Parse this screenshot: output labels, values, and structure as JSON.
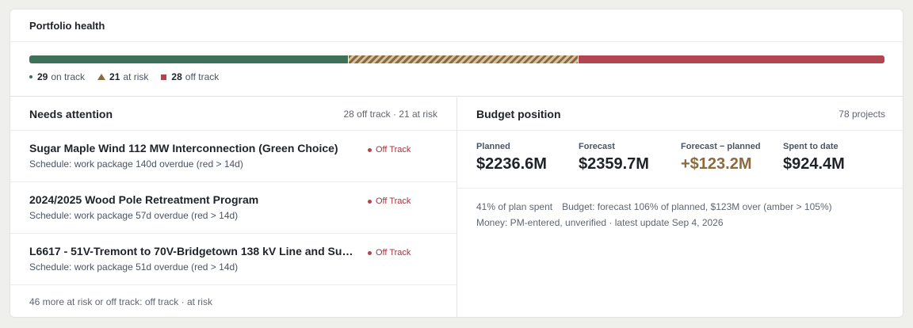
{
  "health": {
    "title": "Portfolio health",
    "on_track_count": "29",
    "on_track_label": "on track",
    "at_risk_count": "21",
    "at_risk_label": "at risk",
    "off_track_count": "28",
    "off_track_label": "off track",
    "colors": {
      "on_track": "#3e7157",
      "at_risk": "#8b6a3e",
      "off_track": "#b2454f"
    }
  },
  "attention": {
    "title": "Needs attention",
    "meta": "28 off track · 21 at risk",
    "items": [
      {
        "title": "Sugar Maple Wind 112 MW Interconnection (Green Choice)",
        "detail": "Schedule: work package 140d overdue (red > 14d)",
        "status": "Off Track"
      },
      {
        "title": "2024/2025 Wood Pole Retreatment Program",
        "detail": "Schedule: work package 57d overdue (red > 14d)",
        "status": "Off Track"
      },
      {
        "title": "L6617 - 51V-Tremont to 70V-Bridgetown 138 kV Line and Su…",
        "detail": "Schedule: work package 51d overdue (red > 14d)",
        "status": "Off Track"
      }
    ],
    "more": "46 more at risk or off track: off track · at risk"
  },
  "budget": {
    "title": "Budget position",
    "meta": "78 projects",
    "planned_label": "Planned",
    "planned_value": "$2236.6M",
    "forecast_label": "Forecast",
    "forecast_value": "$2359.7M",
    "delta_label": "Forecast − planned",
    "delta_value": "+$123.2M",
    "spent_label": "Spent to date",
    "spent_value": "$924.4M",
    "note_spent": "41% of plan spent",
    "note_budget": "Budget: forecast 106% of planned, $123M over (amber > 105%)",
    "note_source": "Money: PM-entered, unverified · latest update Sep 4, 2026"
  }
}
